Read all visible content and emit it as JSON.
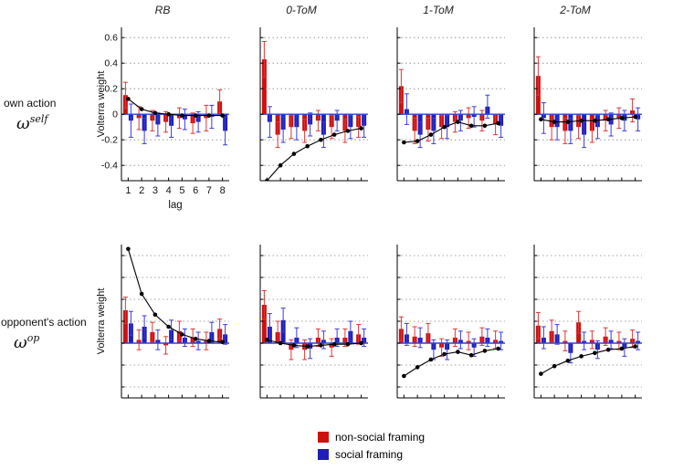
{
  "chart_data": {
    "type": "bar",
    "description": "2x4 grid of Volterra weight bar charts with error bars and black fitted-decay line markers",
    "columns": [
      "RB",
      "0-ToM",
      "1-ToM",
      "2-ToM"
    ],
    "legend": [
      {
        "label": "non-social framing",
        "color": "#cc1111"
      },
      {
        "label": "social framing",
        "color": "#1f1fb4"
      }
    ],
    "zero_line_color": "#3344cc",
    "line_color": "#000000",
    "lags": [
      "1",
      "2",
      "3",
      "4",
      "5",
      "6",
      "7",
      "8"
    ],
    "rows": [
      {
        "label": "own action",
        "symbol": "ω",
        "symbol_sup": "self",
        "ylabel": "Volterra weight",
        "xlabel": "lag",
        "ylim": [
          -0.52,
          0.68
        ],
        "yticks": [
          -0.4,
          -0.2,
          0,
          0.2,
          0.4,
          0.6
        ],
        "ytick_labels": [
          "-0.4",
          "-0.2",
          "0",
          "0.2",
          "0.4",
          "0.6"
        ],
        "panels": [
          {
            "title": "RB",
            "red": [
              0.15,
              -0.03,
              -0.05,
              -0.06,
              -0.03,
              -0.07,
              -0.03,
              0.1
            ],
            "red_err": [
              0.1,
              0.09,
              0.08,
              0.08,
              0.08,
              0.08,
              0.1,
              0.09
            ],
            "blue": [
              -0.05,
              -0.13,
              -0.08,
              -0.09,
              -0.04,
              -0.06,
              -0.02,
              -0.13
            ],
            "blue_err": [
              0.13,
              0.1,
              0.09,
              0.09,
              0.08,
              0.08,
              0.09,
              0.11
            ],
            "line": [
              0.12,
              0.04,
              0.01,
              0.0,
              -0.01,
              -0.01,
              -0.01,
              -0.01
            ]
          },
          {
            "title": "0-ToM",
            "red": [
              0.43,
              -0.16,
              -0.1,
              -0.13,
              -0.05,
              -0.1,
              -0.13,
              -0.1
            ],
            "red_err": [
              0.14,
              0.1,
              0.09,
              0.09,
              0.08,
              0.09,
              0.09,
              0.08
            ],
            "blue": [
              -0.06,
              -0.12,
              -0.1,
              -0.08,
              -0.16,
              -0.05,
              -0.1,
              -0.09
            ],
            "blue_err": [
              0.12,
              0.1,
              0.1,
              0.09,
              0.1,
              0.08,
              0.09,
              0.09
            ],
            "line": [
              -0.52,
              -0.4,
              -0.31,
              -0.25,
              -0.2,
              -0.16,
              -0.13,
              -0.11
            ]
          },
          {
            "title": "1-ToM",
            "red": [
              0.22,
              -0.13,
              -0.12,
              -0.1,
              -0.06,
              -0.03,
              -0.05,
              -0.08
            ],
            "red_err": [
              0.13,
              0.1,
              0.09,
              0.09,
              0.08,
              0.08,
              0.08,
              0.08
            ],
            "blue": [
              0.04,
              -0.16,
              -0.13,
              -0.1,
              -0.05,
              -0.02,
              0.06,
              -0.09
            ],
            "blue_err": [
              0.12,
              0.1,
              0.1,
              0.09,
              0.08,
              0.08,
              0.09,
              0.09
            ],
            "line": [
              -0.22,
              -0.21,
              -0.16,
              -0.1,
              -0.06,
              -0.09,
              -0.09,
              -0.07
            ]
          },
          {
            "title": "2-ToM",
            "red": [
              0.3,
              -0.1,
              -0.13,
              -0.1,
              -0.13,
              -0.05,
              -0.03,
              0.03
            ],
            "red_err": [
              0.15,
              0.1,
              0.1,
              0.09,
              0.09,
              0.08,
              0.08,
              0.09
            ],
            "blue": [
              -0.03,
              -0.1,
              -0.13,
              -0.16,
              -0.1,
              -0.08,
              -0.05,
              -0.04
            ],
            "blue_err": [
              0.12,
              0.1,
              0.1,
              0.1,
              0.09,
              0.09,
              0.08,
              0.09
            ],
            "line": [
              -0.04,
              -0.06,
              -0.06,
              -0.05,
              -0.05,
              -0.04,
              -0.03,
              -0.02
            ]
          }
        ]
      },
      {
        "label": "opponent's action",
        "symbol": "ω",
        "symbol_sup": "op",
        "ylabel": "Volterra weight",
        "xlabel": "",
        "ylim": [
          -0.5,
          0.9
        ],
        "yticks": [
          -0.4,
          -0.2,
          0,
          0.2,
          0.4,
          0.6,
          0.8
        ],
        "ytick_labels": [],
        "panels": [
          {
            "title": "RB",
            "red": [
              0.3,
              0.03,
              0.1,
              -0.02,
              0.11,
              0.05,
              0.02,
              0.13
            ],
            "red_err": [
              0.12,
              0.09,
              0.09,
              0.08,
              0.09,
              0.08,
              0.08,
              0.09
            ],
            "blue": [
              0.18,
              0.15,
              0.03,
              0.12,
              0.05,
              0.02,
              0.1,
              0.08
            ],
            "blue_err": [
              0.11,
              0.1,
              0.09,
              0.09,
              0.08,
              0.08,
              0.09,
              0.09
            ],
            "line": [
              0.86,
              0.45,
              0.26,
              0.15,
              0.08,
              0.04,
              0.02,
              0.01
            ]
          },
          {
            "title": "0-ToM",
            "red": [
              0.35,
              0.1,
              -0.06,
              -0.06,
              0.05,
              -0.04,
              0.05,
              0.08
            ],
            "red_err": [
              0.13,
              0.1,
              0.09,
              0.09,
              0.08,
              0.08,
              0.08,
              0.09
            ],
            "blue": [
              0.15,
              0.21,
              0.05,
              -0.05,
              0.03,
              0.05,
              0.11,
              0.05
            ],
            "blue_err": [
              0.12,
              0.11,
              0.09,
              0.09,
              0.08,
              0.08,
              0.09,
              0.08
            ],
            "line": [
              0.03,
              0.0,
              -0.02,
              -0.03,
              -0.02,
              -0.01,
              -0.01,
              0.0
            ]
          },
          {
            "title": "1-ToM",
            "red": [
              0.13,
              0.06,
              0.09,
              -0.04,
              0.05,
              0.02,
              0.06,
              0.03
            ],
            "red_err": [
              0.11,
              0.09,
              0.09,
              0.08,
              0.08,
              0.08,
              0.08,
              0.08
            ],
            "blue": [
              0.08,
              0.05,
              -0.06,
              -0.06,
              0.03,
              -0.04,
              0.05,
              0.02
            ],
            "blue_err": [
              0.1,
              0.09,
              0.09,
              0.09,
              0.08,
              0.08,
              0.08,
              0.08
            ],
            "line": [
              -0.3,
              -0.22,
              -0.15,
              -0.1,
              -0.08,
              -0.11,
              -0.07,
              -0.05
            ]
          },
          {
            "title": "2-ToM",
            "red": [
              0.16,
              0.11,
              0.02,
              0.19,
              0.03,
              0.06,
              0.02,
              0.04
            ],
            "red_err": [
              0.12,
              0.1,
              0.09,
              0.1,
              0.08,
              0.08,
              0.08,
              0.08
            ],
            "blue": [
              0.05,
              0.08,
              -0.09,
              0.02,
              -0.06,
              0.03,
              -0.04,
              0.02
            ],
            "blue_err": [
              0.1,
              0.09,
              0.09,
              0.08,
              0.08,
              0.08,
              0.08,
              0.08
            ],
            "line": [
              -0.28,
              -0.21,
              -0.16,
              -0.12,
              -0.09,
              -0.06,
              -0.05,
              -0.03
            ]
          }
        ]
      }
    ]
  }
}
